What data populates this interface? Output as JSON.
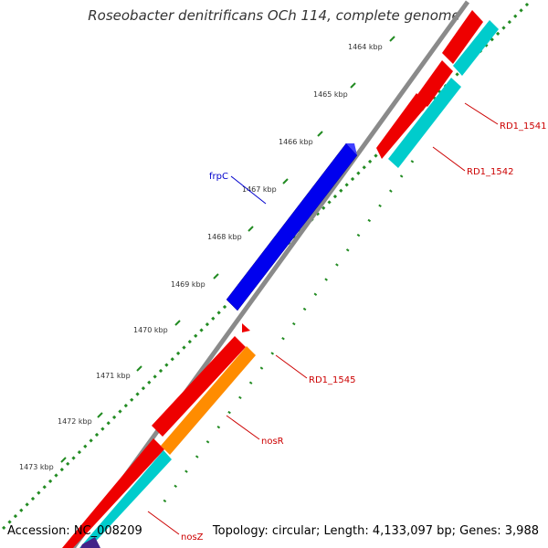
{
  "title": "Roseobacter denitrificans OCh 114, complete genome",
  "accession": "Accession: NC_008209",
  "summary": "Topology: circular; Length: 4,133,097 bp; Genes: 3,988",
  "ticks": [
    "1464 kbp",
    "1465 kbp",
    "1466 kbp",
    "1467 kbp",
    "1468 kbp",
    "1469 kbp",
    "1470 kbp",
    "1471 kbp",
    "1472 kbp",
    "1473 kbp"
  ],
  "genes": {
    "frpc": "frpC",
    "rd1_1541": "RD1_1541",
    "rd1_1542": "RD1_1542",
    "rd1_1545": "RD1_1545",
    "nosr": "nosR",
    "nosz": "nosZ"
  },
  "colors": {
    "backbone": "#8a8a8a",
    "tick_ring": "#228b22",
    "label_blue": "#0000cc",
    "label_red": "#cc0000",
    "gene_blue": "#0000ee",
    "gene_red": "#ee0000",
    "gene_cyan": "#00cccc",
    "gene_orange": "#ff8c00"
  }
}
